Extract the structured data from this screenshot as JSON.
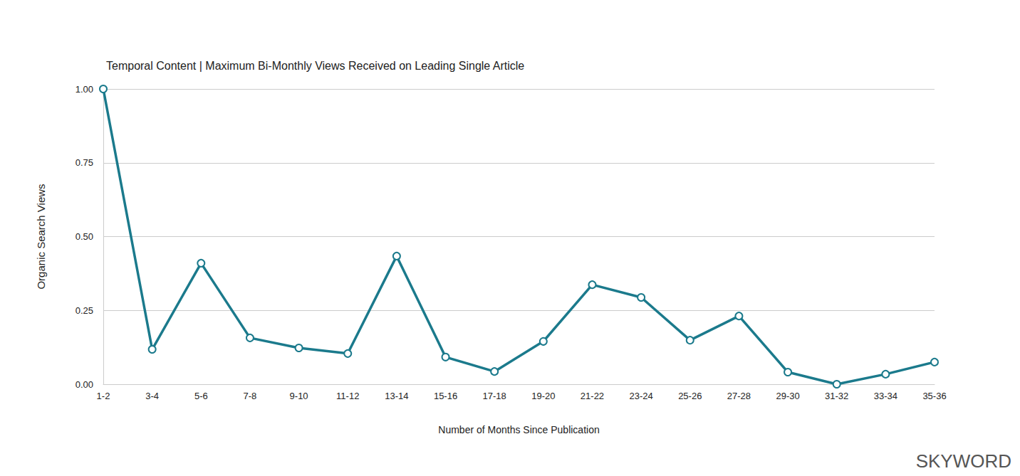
{
  "chart_data": {
    "type": "line",
    "title": "Temporal Content | Maximum Bi-Monthly Views Received on Leading Single Article",
    "x_label": "Number of Months Since Publication",
    "y_label": "Organic Search Views",
    "annotation": "SKYWORD",
    "categories": [
      "1-2",
      "3-4",
      "5-6",
      "7-8",
      "9-10",
      "11-12",
      "13-14",
      "15-16",
      "17-18",
      "19-20",
      "21-22",
      "23-24",
      "25-26",
      "27-28",
      "29-30",
      "31-32",
      "33-34",
      "35-36"
    ],
    "values": [
      1.0,
      0.118,
      0.41,
      0.157,
      0.123,
      0.104,
      0.434,
      0.092,
      0.043,
      0.145,
      0.337,
      0.294,
      0.149,
      0.231,
      0.041,
      0.0,
      0.034,
      0.075
    ],
    "color": "#1b7a8c",
    "marker": "emptyCircle",
    "ylim": [
      0,
      1
    ],
    "yticks": [
      {
        "value": 0,
        "label": "0.00"
      },
      {
        "value": 0.25,
        "label": "0.25"
      },
      {
        "value": 0.5,
        "label": "0.50"
      },
      {
        "value": 0.75,
        "label": "0.75"
      },
      {
        "value": 1,
        "label": "1.00"
      }
    ],
    "grid": true
  }
}
